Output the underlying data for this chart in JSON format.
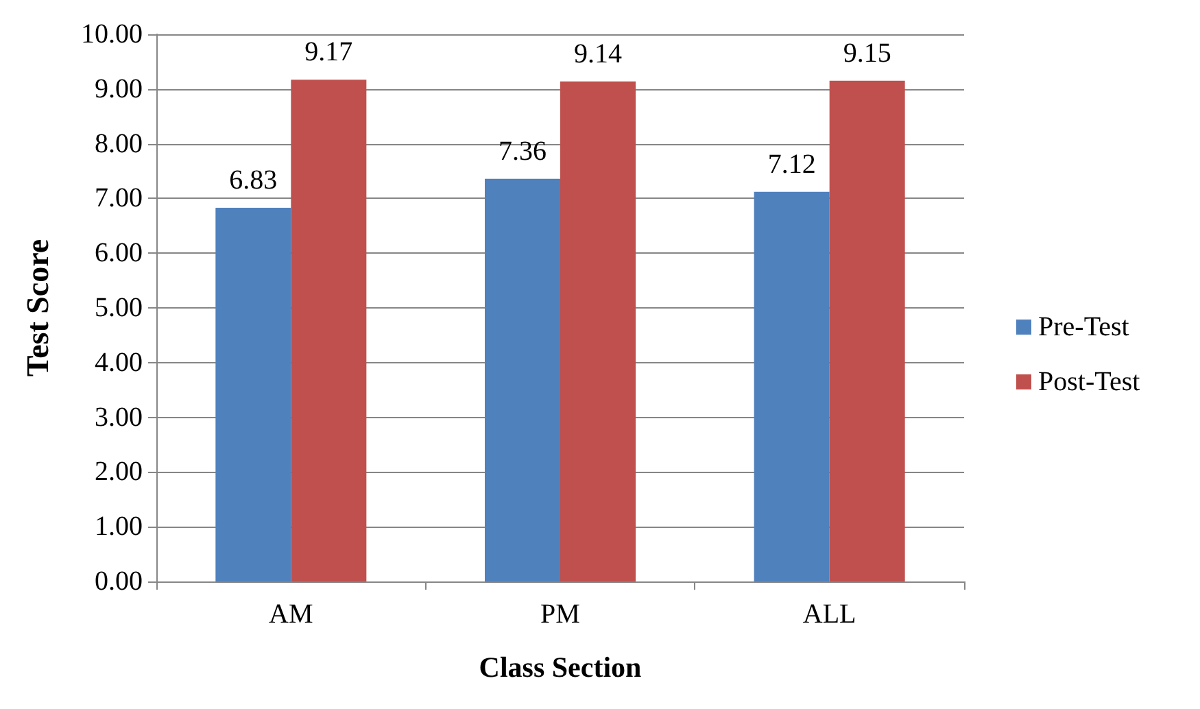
{
  "chart_data": {
    "type": "bar",
    "xlabel": "Class Section",
    "ylabel": "Test Score",
    "categories": [
      "AM",
      "PM",
      "ALL"
    ],
    "series": [
      {
        "name": "Pre-Test",
        "color": "#4f81bd",
        "values": [
          6.83,
          7.36,
          7.12
        ]
      },
      {
        "name": "Post-Test",
        "color": "#c0504d",
        "values": [
          9.17,
          9.14,
          9.15
        ]
      }
    ],
    "ylim": [
      0,
      10
    ],
    "yticks": [
      {
        "value": 0,
        "label": "0.00"
      },
      {
        "value": 1,
        "label": "1.00"
      },
      {
        "value": 2,
        "label": "2.00"
      },
      {
        "value": 3,
        "label": "3.00"
      },
      {
        "value": 4,
        "label": "4.00"
      },
      {
        "value": 5,
        "label": "5.00"
      },
      {
        "value": 6,
        "label": "6.00"
      },
      {
        "value": 7,
        "label": "7.00"
      },
      {
        "value": 8,
        "label": "8.00"
      },
      {
        "value": 9,
        "label": "9.00"
      },
      {
        "value": 10,
        "label": "10.00"
      }
    ],
    "grid": "y",
    "legend": "right",
    "data_labels": true
  }
}
